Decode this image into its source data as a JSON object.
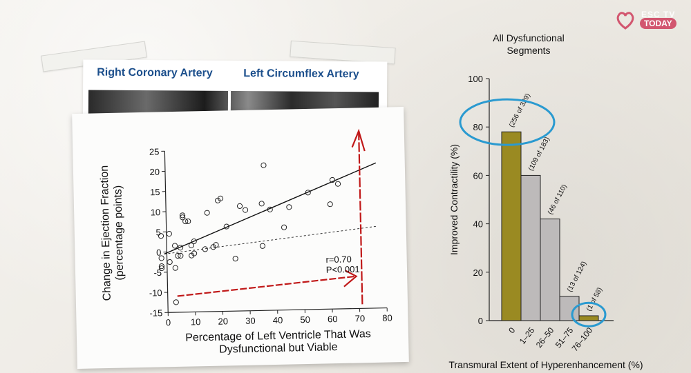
{
  "header": {
    "left_artery_label": "Right Coronary Artery",
    "right_artery_label": "Left Circumflex Artery"
  },
  "logo": {
    "esc_text": "ESC TV",
    "today_text": "TODAY",
    "icon": "heart-icon",
    "accent": "#d2566f"
  },
  "chart_data": [
    {
      "type": "scatter",
      "title": "",
      "xlabel": "Percentage of Left Ventricle That Was Dysfunctional but Viable",
      "xlabel_lines": [
        "Percentage of Left Ventricle That Was",
        "Dysfunctional but Viable"
      ],
      "ylabel": "Change in Ejection Fraction (percentage points)",
      "ylabel_lines": [
        "Change in Ejection Fraction",
        "(percentage points)"
      ],
      "xlim": [
        0,
        80
      ],
      "ylim": [
        -15,
        25
      ],
      "xticks": [
        0,
        10,
        20,
        30,
        40,
        50,
        60,
        70,
        80
      ],
      "yticks": [
        -15,
        -10,
        -5,
        0,
        5,
        10,
        15,
        20,
        25
      ],
      "points": [
        [
          -2,
          4
        ],
        [
          -2,
          -1.5
        ],
        [
          -2,
          -3.5
        ],
        [
          -2,
          -4
        ],
        [
          1,
          4.5
        ],
        [
          3,
          -4
        ],
        [
          3,
          1.5
        ],
        [
          4,
          -1
        ],
        [
          5,
          -1
        ],
        [
          5,
          1
        ],
        [
          6,
          8.5
        ],
        [
          6,
          9
        ],
        [
          7,
          7.5
        ],
        [
          8,
          7.5
        ],
        [
          9,
          1.5
        ],
        [
          10,
          -0.5
        ],
        [
          10,
          2.5
        ],
        [
          14,
          0.5
        ],
        [
          15,
          9.5
        ],
        [
          17,
          1
        ],
        [
          18,
          1.5
        ],
        [
          19,
          12.5
        ],
        [
          20,
          13
        ],
        [
          22,
          6
        ],
        [
          25,
          -2
        ],
        [
          27,
          11
        ],
        [
          29,
          10
        ],
        [
          35,
          1
        ],
        [
          35,
          11.5
        ],
        [
          36,
          21
        ],
        [
          38,
          10
        ],
        [
          43,
          5.5
        ],
        [
          45,
          10.5
        ],
        [
          52,
          14
        ],
        [
          60,
          11
        ],
        [
          61,
          17
        ],
        [
          63,
          16
        ],
        [
          3,
          -12.5
        ],
        [
          1,
          -2.5
        ],
        [
          9,
          -1
        ]
      ],
      "fit_line": {
        "x": [
          -1,
          77
        ],
        "y": [
          -0.5,
          21
        ]
      },
      "reference_line": {
        "x": [
          -1,
          77
        ],
        "y": [
          -0.5,
          5.3
        ]
      },
      "annotations": [
        "r=0.70",
        "P<0.001"
      ],
      "colors": {
        "points": "#222222",
        "fit": "#111111",
        "arrow": "#c01818"
      }
    },
    {
      "type": "bar",
      "title": "All Dysfunctional Segments",
      "title_lines": [
        "All Dysfunctional",
        "Segments"
      ],
      "xlabel": "Transmural Extent of Hyperenhancement (%)",
      "ylabel": "Improved Contractility (%)",
      "ylim": [
        0,
        100
      ],
      "yticks": [
        0,
        20,
        40,
        60,
        80,
        100
      ],
      "categories": [
        "0",
        "1–25",
        "26–50",
        "51–75",
        "76–100"
      ],
      "values": [
        78,
        60,
        42,
        10,
        2
      ],
      "bar_labels": [
        "(256 of 329)",
        "(109 of 183)",
        "(46 of 110)",
        "(13 of 124)",
        "(1 of 58)"
      ],
      "colors": {
        "highlight": "#9a8a22",
        "normal": "#bdbaba",
        "circle": "#2a9ad0"
      },
      "highlighted": [
        0,
        4
      ]
    }
  ]
}
